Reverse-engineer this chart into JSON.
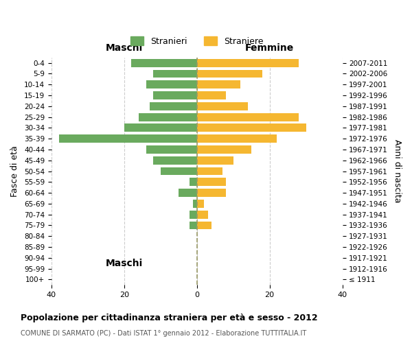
{
  "age_groups": [
    "100+",
    "95-99",
    "90-94",
    "85-89",
    "80-84",
    "75-79",
    "70-74",
    "65-69",
    "60-64",
    "55-59",
    "50-54",
    "45-49",
    "40-44",
    "35-39",
    "30-34",
    "25-29",
    "20-24",
    "15-19",
    "10-14",
    "5-9",
    "0-4"
  ],
  "birth_years": [
    "≤ 1911",
    "1912-1916",
    "1917-1921",
    "1922-1926",
    "1927-1931",
    "1932-1936",
    "1937-1941",
    "1942-1946",
    "1947-1951",
    "1952-1956",
    "1957-1961",
    "1962-1966",
    "1967-1971",
    "1972-1976",
    "1977-1981",
    "1982-1986",
    "1987-1991",
    "1992-1996",
    "1997-2001",
    "2002-2006",
    "2007-2011"
  ],
  "males": [
    0,
    0,
    0,
    0,
    0,
    2,
    2,
    1,
    5,
    2,
    10,
    12,
    14,
    38,
    20,
    16,
    13,
    12,
    14,
    12,
    18
  ],
  "females": [
    0,
    0,
    0,
    0,
    0,
    4,
    3,
    2,
    8,
    8,
    7,
    10,
    15,
    22,
    30,
    28,
    14,
    8,
    12,
    18,
    28
  ],
  "male_color": "#6aaa5e",
  "female_color": "#f5b731",
  "background_color": "#ffffff",
  "grid_color": "#cccccc",
  "title": "Popolazione per cittadinanza straniera per età e sesso - 2012",
  "subtitle": "COMUNE DI SARMATO (PC) - Dati ISTAT 1° gennaio 2012 - Elaborazione TUTTITALIA.IT",
  "maschi_label": "Maschi",
  "femmine_label": "Femmine",
  "stranieri_label": "Stranieri",
  "straniere_label": "Straniere",
  "ylabel_left": "Fasce di età",
  "ylabel_right": "Anni di nascita",
  "xlim": 40,
  "dashed_line_color": "#999966"
}
